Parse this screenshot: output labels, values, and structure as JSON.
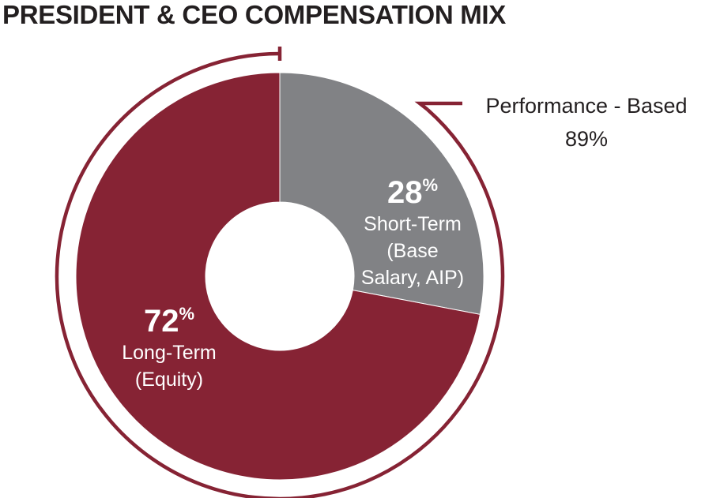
{
  "title": "PRESIDENT & CEO COMPENSATION MIX",
  "chart_data": {
    "type": "pie",
    "style": "donut",
    "series": [
      {
        "values": [
          {
            "label": "Short-Term (Base Salary, AIP)",
            "value": 28,
            "color": "#818285",
            "value_text": "28",
            "unit": "%",
            "lines": [
              "Short-Term",
              "(Base",
              "Salary, AIP)"
            ]
          },
          {
            "label": "Long-Term (Equity)",
            "value": 72,
            "color": "#862334",
            "value_text": "72",
            "unit": "%",
            "lines": [
              "Long-Term",
              "(Equity)"
            ]
          }
        ]
      }
    ],
    "annotation": {
      "label": "Performance - Based",
      "value": 89,
      "value_text": "89%",
      "color": "#862334"
    }
  }
}
